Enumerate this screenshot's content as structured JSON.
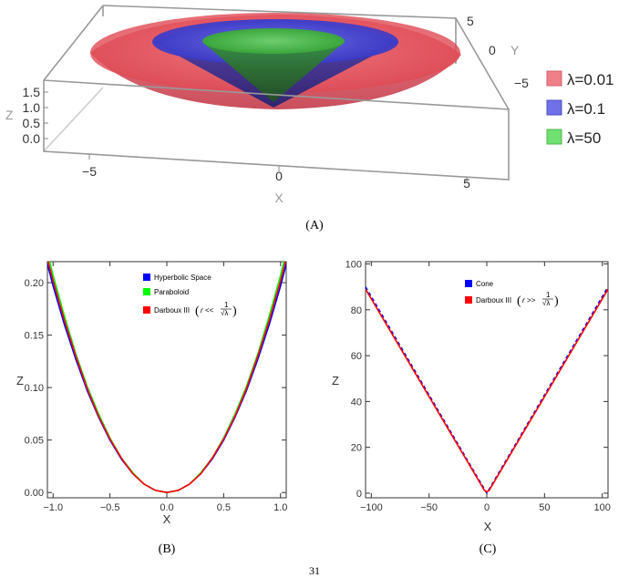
{
  "chart_data": [
    {
      "panel": "(A)",
      "type": "surface3d",
      "xlabel": "X",
      "ylabel": "Y",
      "zlabel": "Z",
      "x_ticks": [
        "−5",
        "0",
        "5"
      ],
      "y_ticks": [
        "5",
        "0",
        "−5"
      ],
      "z_ticks": [
        "1.5",
        "1.0",
        "0.5",
        "0.0"
      ],
      "series": [
        {
          "name": "λ=0.01",
          "color": "#e8505a"
        },
        {
          "name": "λ=0.1",
          "color": "#4848d8"
        },
        {
          "name": "λ=50",
          "color": "#48c048"
        }
      ],
      "legend": "right"
    },
    {
      "panel": "(B)",
      "type": "line",
      "xlabel": "X",
      "ylabel": "Z",
      "xlim": [
        -1.05,
        1.05
      ],
      "ylim": [
        -0.005,
        0.22
      ],
      "x_ticks": [
        "−1.0",
        "−0.5",
        "0.0",
        "0.5",
        "1.0"
      ],
      "x_tick_values": [
        -1.0,
        -0.5,
        0.0,
        0.5,
        1.0
      ],
      "y_ticks": [
        "0.00",
        "0.05",
        "0.10",
        "0.15",
        "0.20"
      ],
      "y_tick_values": [
        0.0,
        0.05,
        0.1,
        0.15,
        0.2
      ],
      "series": [
        {
          "name": "Hyperbolic Space",
          "color": "#0000ff",
          "x": [
            -1.05,
            -1.0,
            -0.9,
            -0.8,
            -0.7,
            -0.6,
            -0.5,
            -0.4,
            -0.3,
            -0.2,
            -0.1,
            0,
            0.1,
            0.2,
            0.3,
            0.4,
            0.5,
            0.6,
            0.7,
            0.8,
            0.9,
            1.0,
            1.05
          ],
          "y": [
            0.218,
            0.197,
            0.16,
            0.127,
            0.097,
            0.072,
            0.05,
            0.032,
            0.018,
            0.008,
            0.002,
            0,
            0.002,
            0.008,
            0.018,
            0.032,
            0.05,
            0.072,
            0.097,
            0.127,
            0.16,
            0.197,
            0.218
          ]
        },
        {
          "name": "Paraboloid",
          "color": "#00ff00",
          "x": [
            -1.05,
            -1.0,
            -0.9,
            -0.8,
            -0.7,
            -0.6,
            -0.5,
            -0.4,
            -0.3,
            -0.2,
            -0.1,
            0,
            0.1,
            0.2,
            0.3,
            0.4,
            0.5,
            0.6,
            0.7,
            0.8,
            0.9,
            1.0,
            1.05
          ],
          "y": [
            0.229,
            0.207,
            0.168,
            0.132,
            0.101,
            0.075,
            0.052,
            0.033,
            0.019,
            0.008,
            0.002,
            0,
            0.002,
            0.008,
            0.019,
            0.033,
            0.052,
            0.075,
            0.101,
            0.132,
            0.168,
            0.207,
            0.229
          ]
        },
        {
          "name": "Darboux III",
          "color": "#ff0000",
          "x": [
            -1.05,
            -1.0,
            -0.9,
            -0.8,
            -0.7,
            -0.6,
            -0.5,
            -0.4,
            -0.3,
            -0.2,
            -0.1,
            0,
            0.1,
            0.2,
            0.3,
            0.4,
            0.5,
            0.6,
            0.7,
            0.8,
            0.9,
            1.0,
            1.05
          ],
          "y": [
            0.223,
            0.202,
            0.164,
            0.13,
            0.099,
            0.073,
            0.051,
            0.033,
            0.018,
            0.008,
            0.002,
            0,
            0.002,
            0.008,
            0.018,
            0.033,
            0.051,
            0.073,
            0.099,
            0.13,
            0.164,
            0.202,
            0.223
          ]
        }
      ],
      "legend_labels": [
        "Hyperbolic Space",
        "Paraboloid",
        "Darboux III (r << 1/√λ)"
      ],
      "legend": "top-center"
    },
    {
      "panel": "(C)",
      "type": "line",
      "xlabel": "X",
      "ylabel": "Z",
      "xlim": [
        -105,
        105
      ],
      "ylim": [
        -2,
        101
      ],
      "x_ticks": [
        "−100",
        "−50",
        "0",
        "50",
        "100"
      ],
      "x_tick_values": [
        -100,
        -50,
        0,
        50,
        100
      ],
      "y_ticks": [
        "0",
        "20",
        "40",
        "60",
        "80",
        "100"
      ],
      "y_tick_values": [
        0,
        20,
        40,
        60,
        80,
        100
      ],
      "series": [
        {
          "name": "Cone",
          "color": "#0000ff",
          "dashed": true,
          "x": [
            -105,
            0,
            105
          ],
          "y": [
            90,
            0,
            90
          ]
        },
        {
          "name": "Darboux III",
          "color": "#ff0000",
          "x": [
            -105,
            -2,
            0,
            2,
            105
          ],
          "y": [
            89,
            1.2,
            0.6,
            1.2,
            89
          ]
        }
      ],
      "legend_labels": [
        "Cone",
        "Darboux III (r >> 1/√λ)"
      ],
      "legend": "top-center"
    }
  ],
  "captions": {
    "a": "(A)",
    "b": "(B)",
    "c": "(C)"
  },
  "legend3d": [
    "λ=0.01",
    "λ=0.1",
    "λ=50"
  ],
  "legendB": {
    "item1": "Hyperbolic Space",
    "item2": "Paraboloid",
    "item3_prefix": "Darboux III",
    "item3_rel": "r <<"
  },
  "legendC": {
    "item1": "Cone",
    "item2_prefix": "Darboux III",
    "item2_rel": "r >>"
  },
  "frac": {
    "num": "1",
    "den": "√λ"
  },
  "page_footer": "31"
}
